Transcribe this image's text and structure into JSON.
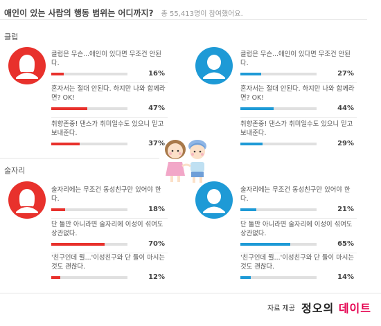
{
  "poll": {
    "question": "애인이 있는 사람의 행동 범위는 어디까지?",
    "participants": "총 55,413명이 참여했어요."
  },
  "colors": {
    "female": "#e8312c",
    "male": "#1e9ad6"
  },
  "icons": {
    "female": "female-avatar-icon",
    "male": "male-avatar-icon",
    "illustration": "couple-illustration"
  },
  "sections": [
    {
      "title": "클럽",
      "female": [
        {
          "text": "클럽은 무슨...애인이 있다면 무조건 안된다.",
          "percent": "16%",
          "value": 16
        },
        {
          "text": "혼자서는 절대 안된다. 하지만 나와 함께라면? OK!",
          "percent": "47%",
          "value": 47
        },
        {
          "text": "취향존중! 댄스가 취미일수도 있으니 믿고 보내준다.",
          "percent": "37%",
          "value": 37
        }
      ],
      "male": [
        {
          "text": "클럽은 무슨...애인이 있다면 무조건 안된다.",
          "percent": "27%",
          "value": 27
        },
        {
          "text": "혼자서는 절대 안된다. 하지만 나와 함께라면? OK!",
          "percent": "44%",
          "value": 44
        },
        {
          "text": "취향존중! 댄스가 취미일수도 있으니 믿고 보내준다.",
          "percent": "29%",
          "value": 29
        }
      ]
    },
    {
      "title": "술자리",
      "female": [
        {
          "text": "술자리에는 무조건 동성친구만 있어야 한다.",
          "percent": "18%",
          "value": 18
        },
        {
          "text": "단 둘만 아니라면 술자리에 이성이 섞여도 상관없다.",
          "percent": "70%",
          "value": 70
        },
        {
          "text": "'친구인데 뭘...'이성친구와 단 둘이 마시는 것도 괜찮다.",
          "percent": "12%",
          "value": 12
        }
      ],
      "male": [
        {
          "text": "술자리에는 무조건 동성친구만 있어야 한다.",
          "percent": "21%",
          "value": 21
        },
        {
          "text": "단 둘만 아니라면 술자리에 이성이 섞여도 상관없다.",
          "percent": "65%",
          "value": 65
        },
        {
          "text": "'친구인데 뭘...'이성친구와 단 둘이 마시는 것도 괜찮다.",
          "percent": "14%",
          "value": 14
        }
      ]
    }
  ],
  "credit": {
    "label": "자료 제공",
    "brand_main": "정오의",
    "brand_accent": "데이트"
  }
}
